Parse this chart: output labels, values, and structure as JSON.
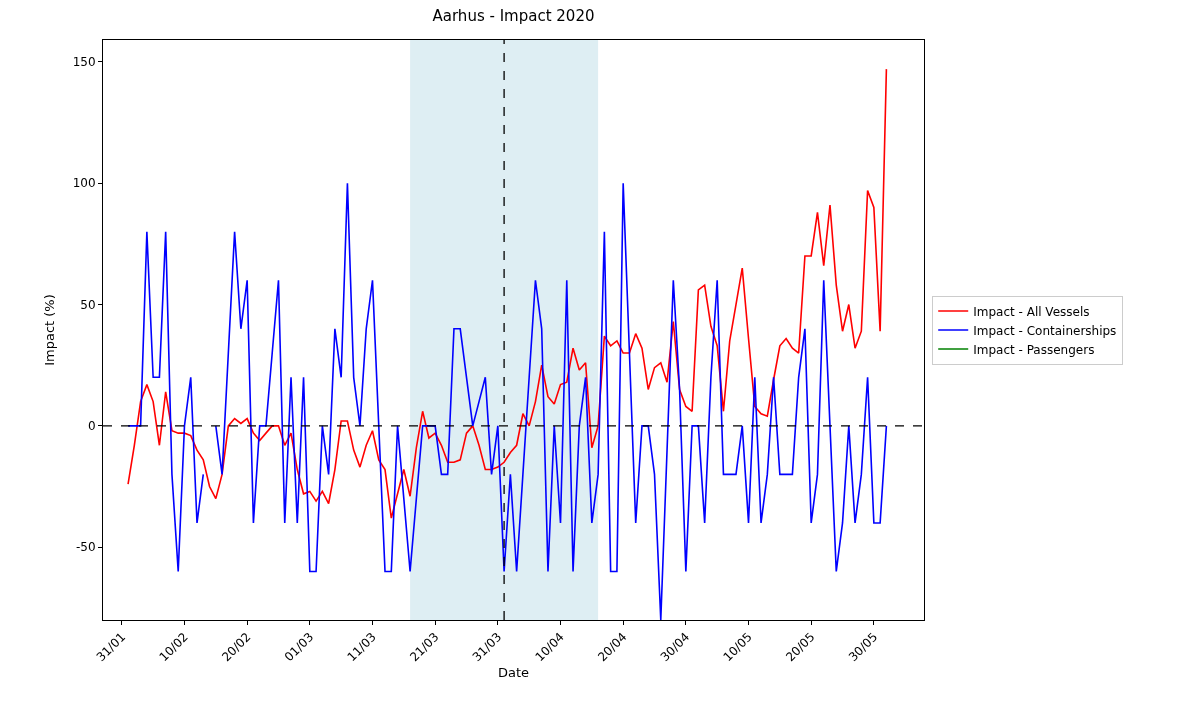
{
  "chart_data": {
    "type": "line",
    "title": "Aarhus - Impact 2020",
    "xlabel": "Date",
    "ylabel": "Impact (%)",
    "x": [
      "2020-02-01",
      "2020-02-02",
      "2020-02-03",
      "2020-02-04",
      "2020-02-05",
      "2020-02-06",
      "2020-02-07",
      "2020-02-08",
      "2020-02-09",
      "2020-02-10",
      "2020-02-11",
      "2020-02-12",
      "2020-02-13",
      "2020-02-14",
      "2020-02-15",
      "2020-02-16",
      "2020-02-17",
      "2020-02-18",
      "2020-02-19",
      "2020-02-20",
      "2020-02-21",
      "2020-02-22",
      "2020-02-23",
      "2020-02-24",
      "2020-02-25",
      "2020-02-26",
      "2020-02-27",
      "2020-02-28",
      "2020-02-29",
      "2020-03-01",
      "2020-03-02",
      "2020-03-03",
      "2020-03-04",
      "2020-03-05",
      "2020-03-06",
      "2020-03-07",
      "2020-03-08",
      "2020-03-09",
      "2020-03-10",
      "2020-03-11",
      "2020-03-12",
      "2020-03-13",
      "2020-03-14",
      "2020-03-15",
      "2020-03-16",
      "2020-03-17",
      "2020-03-18",
      "2020-03-19",
      "2020-03-20",
      "2020-03-21",
      "2020-03-22",
      "2020-03-23",
      "2020-03-24",
      "2020-03-25",
      "2020-03-26",
      "2020-03-27",
      "2020-03-28",
      "2020-03-29",
      "2020-03-30",
      "2020-03-31",
      "2020-04-01",
      "2020-04-02",
      "2020-04-03",
      "2020-04-04",
      "2020-04-05",
      "2020-04-06",
      "2020-04-07",
      "2020-04-08",
      "2020-04-09",
      "2020-04-10",
      "2020-04-11",
      "2020-04-12",
      "2020-04-13",
      "2020-04-14",
      "2020-04-15",
      "2020-04-16",
      "2020-04-17",
      "2020-04-18",
      "2020-04-19",
      "2020-04-20",
      "2020-04-21",
      "2020-04-22",
      "2020-04-23",
      "2020-04-24",
      "2020-04-25",
      "2020-04-26",
      "2020-04-27",
      "2020-04-28",
      "2020-04-29",
      "2020-04-30",
      "2020-05-01",
      "2020-05-02",
      "2020-05-03",
      "2020-05-04",
      "2020-05-05",
      "2020-05-06",
      "2020-05-07",
      "2020-05-08",
      "2020-05-09",
      "2020-05-10",
      "2020-05-11",
      "2020-05-12",
      "2020-05-13",
      "2020-05-14",
      "2020-05-15",
      "2020-05-16",
      "2020-05-17",
      "2020-05-18",
      "2020-05-19",
      "2020-05-20",
      "2020-05-21",
      "2020-05-22",
      "2020-05-23",
      "2020-05-24",
      "2020-05-25",
      "2020-05-26",
      "2020-05-27",
      "2020-05-28",
      "2020-05-29",
      "2020-05-30",
      "2020-05-31",
      "2020-06-01"
    ],
    "series": [
      {
        "name": "Impact - All Vessels",
        "color": "#ff0000",
        "values": [
          -24,
          -8,
          10,
          17,
          10,
          -8,
          14,
          -2,
          -3,
          -3,
          -4,
          -10,
          -14,
          -25,
          -30,
          -20,
          0,
          3,
          1,
          3,
          -3,
          -6,
          -3,
          0,
          0,
          -8,
          -3,
          -18,
          -28,
          -27,
          -31,
          -27,
          -32,
          -18,
          2,
          2,
          -10,
          -17,
          -8,
          -2,
          -14,
          -18,
          -38,
          -28,
          -18,
          -29,
          -9,
          6,
          -5,
          -3,
          -8,
          -15,
          -15,
          -14,
          -3,
          0,
          -8,
          -18,
          -18,
          -17,
          -15,
          -11,
          -8,
          5,
          0,
          10,
          25,
          12,
          9,
          17,
          18,
          32,
          23,
          26,
          -9,
          0,
          37,
          33,
          35,
          30,
          30,
          38,
          32,
          15,
          24,
          26,
          18,
          43,
          15,
          8,
          6,
          56,
          58,
          41,
          33,
          6,
          35,
          50,
          65,
          36,
          8,
          5,
          4,
          19,
          33,
          36,
          32,
          30,
          70,
          70,
          88,
          66,
          91,
          58,
          39,
          50,
          32,
          39,
          97,
          90,
          39,
          147
        ]
      },
      {
        "name": "Impact - Containerships",
        "color": "#0000ff",
        "values": [
          0,
          0,
          0,
          80,
          20,
          20,
          80,
          -20,
          -60,
          0,
          20,
          -40,
          -20,
          null,
          0,
          -20,
          30,
          80,
          40,
          60,
          -40,
          0,
          0,
          30,
          60,
          -40,
          20,
          -40,
          20,
          -60,
          -60,
          0,
          -20,
          40,
          20,
          100,
          20,
          0,
          40,
          60,
          0,
          -60,
          -60,
          0,
          -30,
          -60,
          -30,
          0,
          0,
          0,
          -20,
          -20,
          40,
          40,
          20,
          0,
          10,
          20,
          -20,
          0,
          -60,
          -20,
          -60,
          -20,
          20,
          60,
          40,
          -60,
          0,
          -40,
          60,
          -60,
          0,
          20,
          -40,
          -20,
          80,
          -60,
          -60,
          100,
          30,
          -40,
          0,
          0,
          -20,
          -80,
          -10,
          60,
          15,
          -60,
          0,
          0,
          -40,
          20,
          60,
          -20,
          -20,
          -20,
          0,
          -40,
          20,
          -40,
          -20,
          20,
          -20,
          -20,
          -20,
          20,
          40,
          -40,
          -20,
          60,
          0,
          -60,
          -40,
          0,
          -40,
          -20,
          20,
          -40,
          -40,
          0
        ]
      },
      {
        "name": "Impact - Passengers",
        "color": "#008000",
        "values": [
          null,
          null,
          null,
          null,
          null,
          null,
          null,
          null,
          null,
          null,
          null,
          null,
          null,
          null,
          null,
          null,
          null,
          null,
          null,
          null,
          null,
          null,
          null,
          null,
          null,
          null,
          null,
          null,
          null,
          null,
          null,
          null,
          null,
          null,
          null,
          null,
          null,
          null,
          null,
          null,
          null,
          null,
          null,
          null,
          null,
          null,
          null,
          null,
          null,
          null,
          null,
          null,
          null,
          null,
          null,
          null,
          null,
          null,
          null,
          null,
          null,
          null,
          null,
          null,
          null,
          null,
          null,
          null,
          null,
          null,
          null,
          null,
          null,
          null,
          null,
          null,
          null,
          null,
          null,
          null,
          null,
          null,
          null,
          null,
          null,
          null,
          null,
          null,
          null,
          null,
          null,
          null,
          null,
          null,
          null,
          null,
          null,
          null,
          null,
          null,
          null,
          null,
          null,
          null,
          null,
          null,
          null,
          null,
          null,
          null,
          null,
          null,
          null,
          null,
          null,
          null,
          null,
          null,
          null,
          null,
          null,
          null
        ]
      }
    ],
    "xlim": [
      "2020-01-28",
      "2020-06-07"
    ],
    "xticks": [
      {
        "value": "2020-01-31",
        "label": "31/01"
      },
      {
        "value": "2020-02-10",
        "label": "10/02"
      },
      {
        "value": "2020-02-20",
        "label": "20/02"
      },
      {
        "value": "2020-03-01",
        "label": "01/03"
      },
      {
        "value": "2020-03-11",
        "label": "11/03"
      },
      {
        "value": "2020-03-21",
        "label": "21/03"
      },
      {
        "value": "2020-03-31",
        "label": "31/03"
      },
      {
        "value": "2020-04-10",
        "label": "10/04"
      },
      {
        "value": "2020-04-20",
        "label": "20/04"
      },
      {
        "value": "2020-04-30",
        "label": "30/04"
      },
      {
        "value": "2020-05-10",
        "label": "10/05"
      },
      {
        "value": "2020-05-20",
        "label": "20/05"
      },
      {
        "value": "2020-05-30",
        "label": "30/05"
      }
    ],
    "ylim": [
      -80,
      159
    ],
    "yticks": [
      -50,
      0,
      50,
      100,
      150
    ],
    "ref_lines": [
      {
        "axis": "y",
        "value": 0,
        "color": "#000000",
        "line_style": "dashed"
      },
      {
        "axis": "x",
        "value": "2020-04-01",
        "color": "#000000",
        "line_style": "dashed"
      }
    ],
    "bands": [
      {
        "axis": "x",
        "from": "2020-03-17",
        "to": "2020-04-16",
        "color": "#deeef3"
      }
    ],
    "legend": "right",
    "grid": false,
    "marker": "none",
    "line_style": "solid"
  }
}
